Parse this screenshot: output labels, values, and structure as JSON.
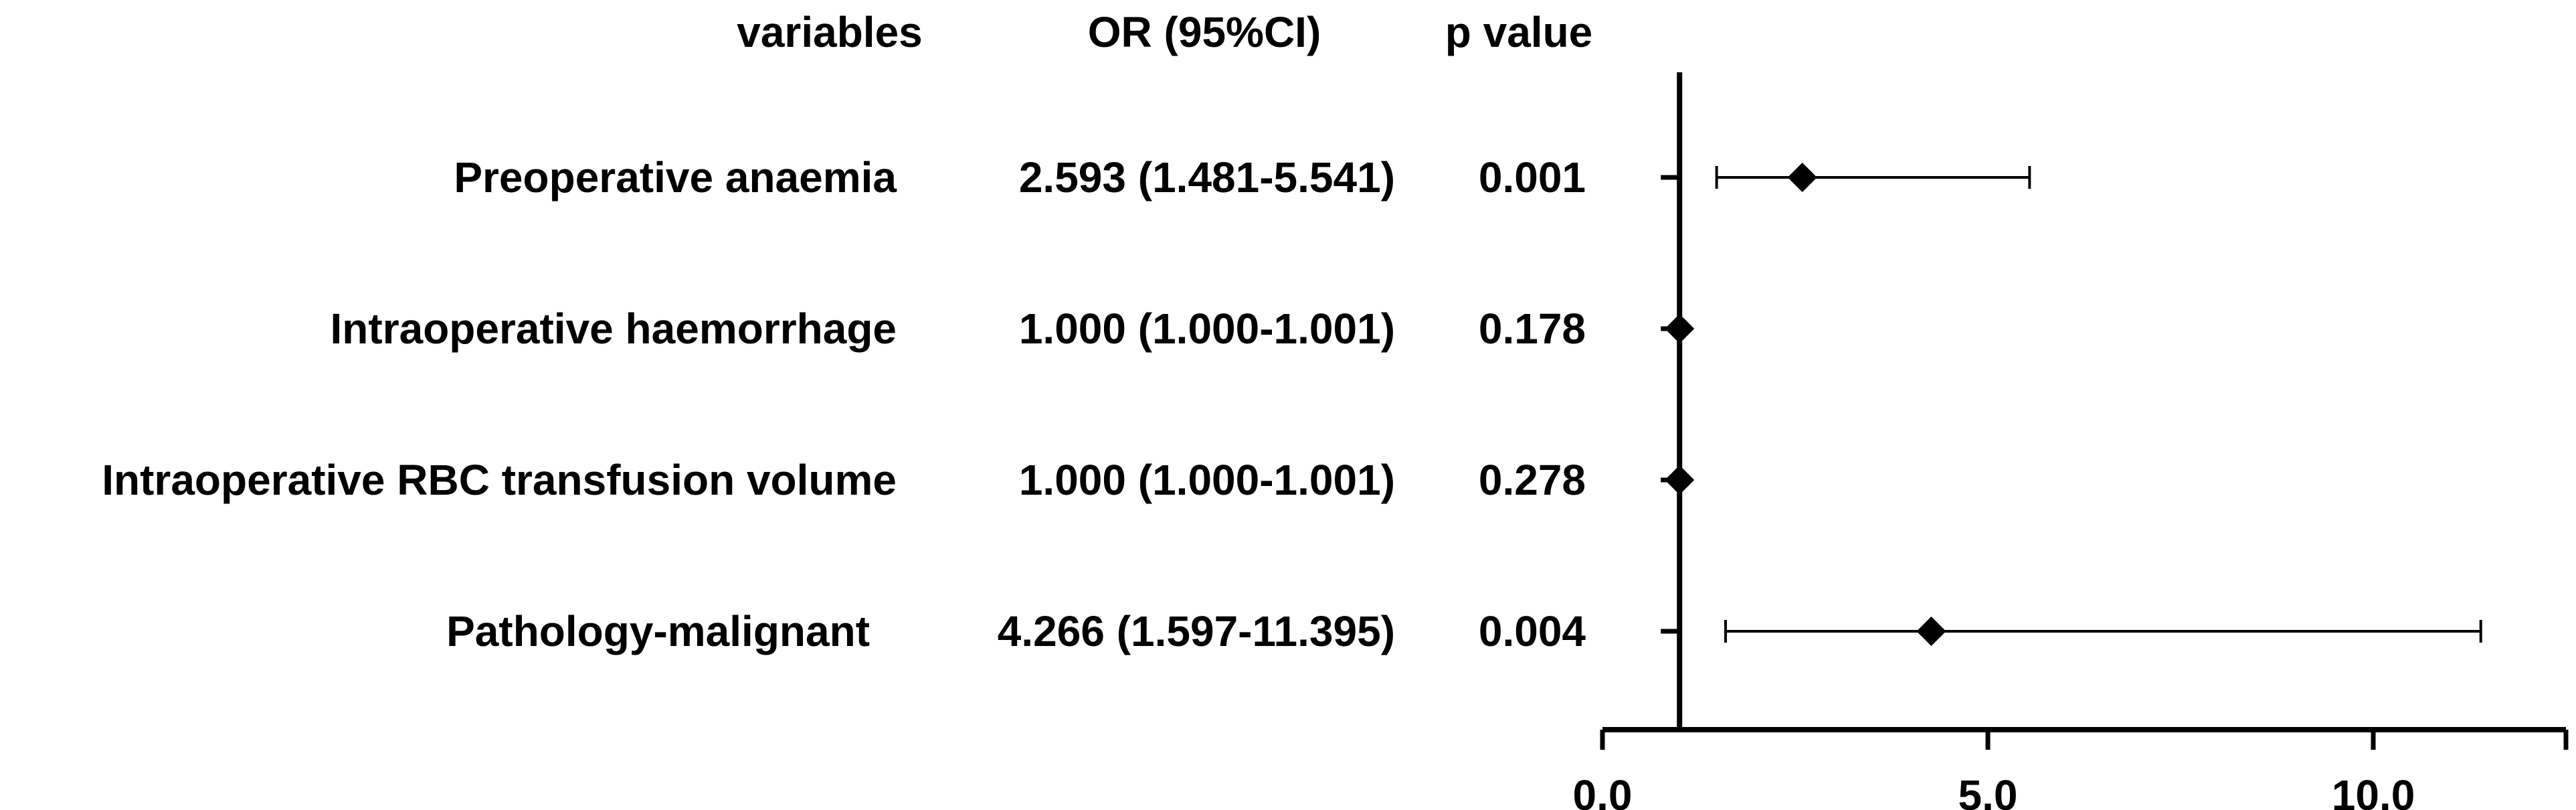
{
  "header": {
    "variables": "variables",
    "or_ci": "OR (95%CI)",
    "p_value": "p value"
  },
  "rows": [
    {
      "variable": "Preoperative anaemia",
      "or_ci": "2.593 (1.481-5.541)",
      "p": "0.001"
    },
    {
      "variable": "Intraoperative haemorrhage",
      "or_ci": "1.000 (1.000-1.001)",
      "p": "0.178"
    },
    {
      "variable": "Intraoperative RBC transfusion volume",
      "or_ci": "1.000 (1.000-1.001)",
      "p": "0.278"
    },
    {
      "variable": "Pathology-malignant",
      "or_ci": "4.266 (1.597-11.395)",
      "p": "0.004"
    }
  ],
  "chart_data": {
    "type": "forest",
    "categories": [
      "Preoperative anaemia",
      "Intraoperative haemorrhage",
      "Intraoperative RBC transfusion volume",
      "Pathology-malignant"
    ],
    "estimates": [
      2.593,
      1.0,
      1.0,
      4.266
    ],
    "lower": [
      1.481,
      1.0,
      1.0,
      1.597
    ],
    "upper": [
      5.541,
      1.001,
      1.001,
      11.395
    ],
    "reference_line": 1.0,
    "xlim": [
      0,
      12.5
    ],
    "xticks": [
      0,
      5,
      10
    ],
    "xtick_labels": [
      "0.0",
      "5.0",
      "10.0"
    ],
    "grid": false,
    "marker": "diamond",
    "color": "#000000"
  }
}
